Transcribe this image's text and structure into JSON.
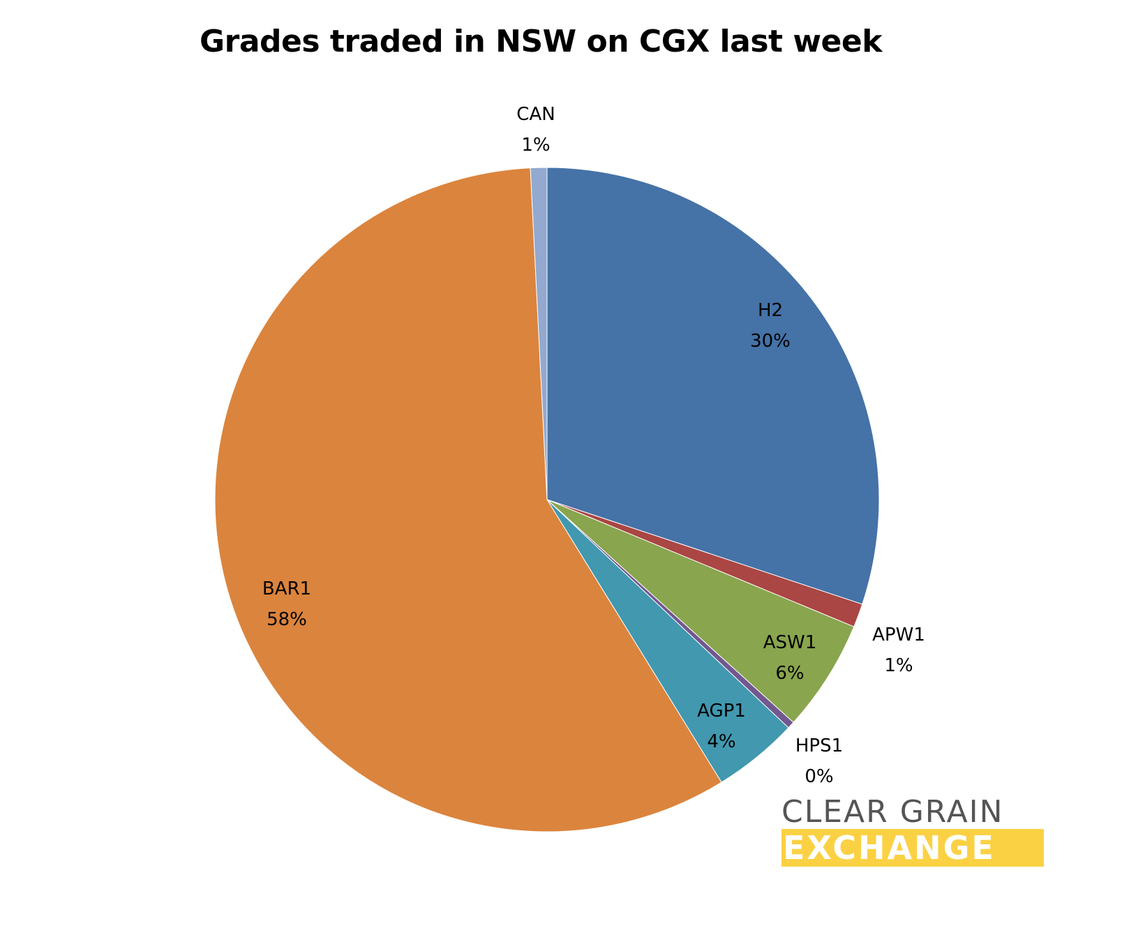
{
  "chart_data": {
    "type": "pie",
    "title": "Grades traded in NSW on CGX last week",
    "start_angle_deg": 0,
    "direction": "clockwise",
    "slices": [
      {
        "label": "H2",
        "display": "30%",
        "value": 30.1,
        "color": "#4572a7"
      },
      {
        "label": "APW1",
        "display": "1%",
        "value": 1.15,
        "color": "#aa4643"
      },
      {
        "label": "ASW1",
        "display": "6%",
        "value": 5.45,
        "color": "#89a54e"
      },
      {
        "label": "HPS1",
        "display": "0%",
        "value": 0.35,
        "color": "#71588f"
      },
      {
        "label": "AGP1",
        "display": "4%",
        "value": 4.15,
        "color": "#4198af"
      },
      {
        "label": "BAR1",
        "display": "58%",
        "value": 58.0,
        "color": "#db843d"
      },
      {
        "label": "CAN",
        "display": "1%",
        "value": 0.8,
        "color": "#93a9cf"
      }
    ],
    "legend": "none",
    "data_labels": "category name and percentage"
  },
  "title": "Grades traded in NSW on CGX last week",
  "labels": {
    "h2": {
      "name": "H2",
      "pct": "30%"
    },
    "apw1": {
      "name": "APW1",
      "pct": "1%"
    },
    "asw1": {
      "name": "ASW1",
      "pct": "6%"
    },
    "hps1": {
      "name": "HPS1",
      "pct": "0%"
    },
    "agp1": {
      "name": "AGP1",
      "pct": "4%"
    },
    "bar1": {
      "name": "BAR1",
      "pct": "58%"
    },
    "can": {
      "name": "CAN",
      "pct": "1%"
    }
  },
  "logo": {
    "line1": "CLEAR GRAIN",
    "line2": "EXCHANGE",
    "gray": "#555555",
    "yellow": "#fbd144"
  }
}
